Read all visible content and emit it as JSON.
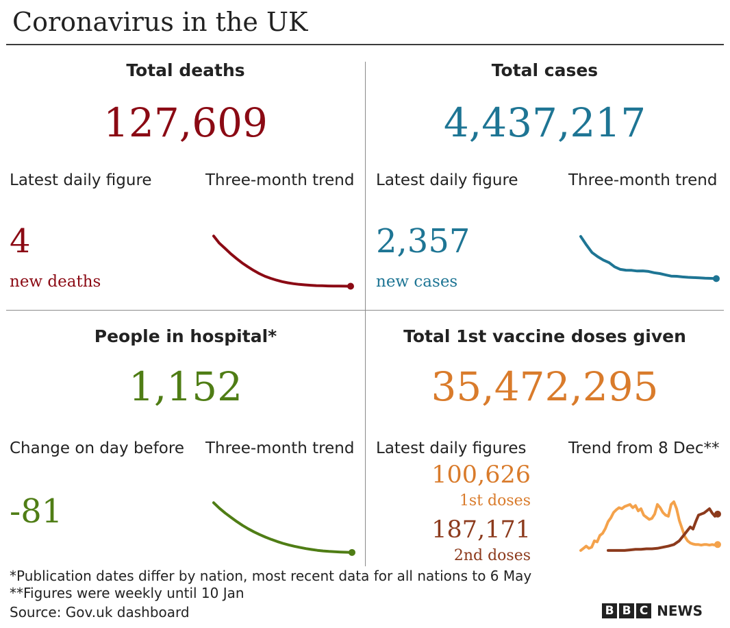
{
  "title": "Coronavirus in the UK",
  "colors": {
    "deaths": "#8b0a14",
    "cases": "#1e7594",
    "hospital": "#4f7d15",
    "dose1": "#d97b2b",
    "dose1_line": "#f4a24b",
    "dose2": "#8c3a1c"
  },
  "deaths": {
    "heading": "Total deaths",
    "total": "127,609",
    "latest_label": "Latest daily figure",
    "trend_label": "Three-month trend",
    "daily": "4",
    "daily_unit": "new deaths"
  },
  "cases": {
    "heading": "Total cases",
    "total": "4,437,217",
    "latest_label": "Latest daily figure",
    "trend_label": "Three-month trend",
    "daily": "2,357",
    "daily_unit": "new cases"
  },
  "hospital": {
    "heading": "People in hospital*",
    "total": "1,152",
    "latest_label": "Change on day before",
    "trend_label": "Three-month trend",
    "daily": "-81"
  },
  "vaccine": {
    "heading": "Total 1st vaccine doses given",
    "total": "35,472,295",
    "latest_label": "Latest daily figures",
    "trend_label": "Trend from 8 Dec**",
    "dose1_value": "100,626",
    "dose1_unit": "1st doses",
    "dose2_value": "187,171",
    "dose2_unit": "2nd doses"
  },
  "footnotes": {
    "note1": "*Publication dates differ by nation, most recent data for all nations to 6 May",
    "note2": "**Figures were weekly until 10 Jan",
    "source": "Source: Gov.uk dashboard"
  },
  "logo": {
    "letters": [
      "B",
      "B",
      "C"
    ],
    "word": "NEWS"
  },
  "chart_data": [
    {
      "type": "line",
      "name": "deaths_trend",
      "x": [
        0,
        1,
        2,
        3,
        4,
        5,
        6,
        7,
        8,
        9,
        10,
        11,
        12,
        13,
        14,
        15,
        16,
        17,
        18,
        19,
        20,
        21,
        22,
        23,
        24
      ],
      "values": [
        1000,
        880,
        790,
        700,
        620,
        545,
        480,
        420,
        365,
        320,
        285,
        255,
        230,
        210,
        195,
        183,
        175,
        168,
        163,
        160,
        157,
        155,
        154,
        153,
        152
      ],
      "ylim": [
        100,
        1050
      ]
    },
    {
      "type": "line",
      "name": "cases_trend",
      "x": [
        0,
        1,
        2,
        3,
        4,
        5,
        6,
        7,
        8,
        9,
        10,
        11,
        12,
        13,
        14,
        15,
        16,
        17,
        18,
        19,
        20,
        21,
        22,
        23,
        24
      ],
      "values": [
        1000,
        900,
        810,
        760,
        720,
        690,
        640,
        610,
        600,
        598,
        590,
        592,
        585,
        570,
        560,
        545,
        530,
        528,
        520,
        515,
        512,
        510,
        505,
        503,
        500
      ],
      "ylim": [
        430,
        1040
      ]
    },
    {
      "type": "line",
      "name": "hospital_trend",
      "x": [
        0,
        1,
        2,
        3,
        4,
        5,
        6,
        7,
        8,
        9,
        10,
        11,
        12,
        13,
        14,
        15,
        16,
        17,
        18,
        19,
        20,
        21,
        22,
        23,
        24
      ],
      "values": [
        1000,
        905,
        820,
        745,
        672,
        605,
        545,
        490,
        442,
        398,
        358,
        322,
        290,
        262,
        238,
        217,
        198,
        182,
        168,
        157,
        149,
        143,
        138,
        134,
        130
      ],
      "ylim": [
        80,
        1040
      ]
    },
    {
      "type": "line",
      "name": "vaccine_trend",
      "series": [
        {
          "key": "first_doses",
          "x": [
            0,
            2,
            4,
            6,
            8,
            10,
            12,
            14,
            16,
            18,
            20,
            22,
            24,
            26,
            28,
            30,
            32,
            34,
            36,
            38,
            40,
            42,
            44,
            46,
            48,
            50,
            52,
            54,
            56,
            58,
            60,
            62,
            64,
            66,
            68,
            70,
            72,
            74,
            76,
            78,
            80,
            82,
            84,
            86,
            88,
            90,
            92,
            94,
            96,
            98,
            100
          ],
          "values": [
            4,
            8,
            12,
            8,
            10,
            22,
            20,
            32,
            36,
            45,
            58,
            65,
            75,
            80,
            84,
            82,
            86,
            88,
            90,
            84,
            88,
            78,
            82,
            70,
            66,
            62,
            64,
            72,
            90,
            84,
            75,
            70,
            68,
            90,
            95,
            82,
            60,
            45,
            30,
            22,
            18,
            16,
            15,
            15,
            14,
            15,
            15,
            14,
            15,
            14,
            15
          ]
        },
        {
          "key": "second_doses",
          "x": [
            20,
            24,
            28,
            32,
            36,
            40,
            44,
            48,
            52,
            56,
            60,
            64,
            68,
            72,
            76,
            80,
            82,
            84,
            86,
            88,
            90,
            92,
            94,
            96,
            98,
            100
          ],
          "values": [
            4,
            4,
            4,
            4,
            5,
            6,
            6,
            7,
            7,
            8,
            10,
            12,
            15,
            22,
            35,
            48,
            44,
            58,
            70,
            72,
            74,
            78,
            82,
            74,
            68,
            72
          ]
        }
      ],
      "ylim": [
        0,
        100
      ]
    }
  ]
}
